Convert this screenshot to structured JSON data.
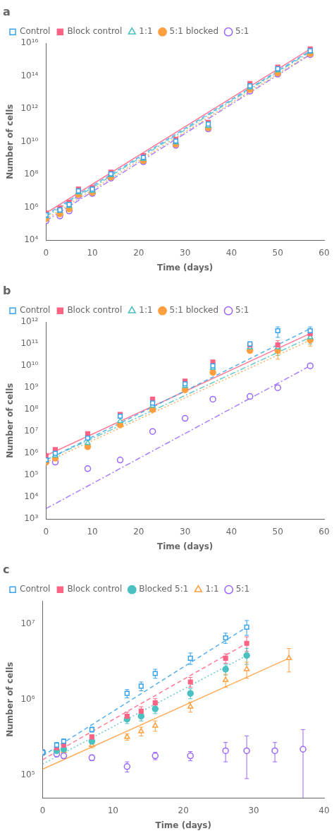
{
  "chart_data": [
    {
      "type": "scatter",
      "title": "a",
      "x_label": "Time (days)",
      "y_label": "Number of cells",
      "log": "y",
      "grid": false,
      "legend": "upper left",
      "xlim": [
        0,
        60
      ],
      "xticks": [
        0,
        10,
        20,
        30,
        40,
        50,
        60
      ],
      "ylim": [
        10000.0,
        1e+16
      ],
      "yticks": [
        {
          "value": 10000.0,
          "label": "10⁴"
        },
        {
          "value": 1000000.0,
          "label": "10⁶"
        },
        {
          "value": 100000000.0,
          "label": "10⁸"
        },
        {
          "value": 10000000000.0,
          "label": "10¹⁰"
        },
        {
          "value": 1000000000000.0,
          "label": "10¹²"
        },
        {
          "value": 100000000000000.0,
          "label": "10¹⁴"
        },
        {
          "value": 1e+16,
          "label": "10¹⁶"
        }
      ],
      "series": [
        {
          "name": "Control",
          "marker": "square-open",
          "line_style": "dashed",
          "x": [
            0,
            3,
            5,
            7,
            10,
            14,
            21,
            28,
            35,
            44,
            50,
            57
          ],
          "y": [
            350000.0,
            700000.0,
            1500000.0,
            10000000.0,
            13000000.0,
            110000000.0,
            1100000000.0,
            11000000000.0,
            120000000000.0,
            25000000000000.0,
            280000000000000.0,
            3500000000000000.0
          ],
          "fit_x": [
            0,
            57
          ],
          "fit_y": [
            350000.0,
            3500000000000000.0
          ]
        },
        {
          "name": "Block control",
          "marker": "square",
          "line_style": "solid",
          "x": [
            0,
            3,
            5,
            7,
            10,
            14,
            21,
            28,
            35,
            44,
            50,
            57
          ],
          "y": [
            450000.0,
            900000.0,
            2000000.0,
            13000000.0,
            16000000.0,
            140000000.0,
            1400000000.0,
            14000000000.0,
            150000000000.0,
            35000000000000.0,
            350000000000000.0,
            4500000000000000.0
          ],
          "fit_x": [
            0,
            57
          ],
          "fit_y": [
            450000.0,
            4500000000000000.0
          ]
        },
        {
          "name": "1:1",
          "marker": "triangle-open",
          "line_style": "dashdot",
          "x": [
            0,
            3,
            5,
            7,
            10,
            14,
            21,
            28,
            35,
            44,
            50,
            57
          ],
          "y": [
            280000.0,
            600000.0,
            1200000.0,
            8000000.0,
            10000000.0,
            90000000.0,
            900000000.0,
            9000000000.0,
            90000000000.0,
            20000000000000.0,
            220000000000000.0,
            3000000000000000.0
          ],
          "fit_x": [
            0,
            57
          ],
          "fit_y": [
            280000.0,
            3000000000000000.0
          ]
        },
        {
          "name": "5:1 blocked",
          "marker": "circle",
          "line_style": "dotted",
          "x": [
            0,
            3,
            5,
            7,
            10,
            14,
            21,
            28,
            35,
            44,
            50,
            57
          ],
          "y": [
            200000.0,
            400000.0,
            800000.0,
            6000000.0,
            8000000.0,
            70000000.0,
            700000000.0,
            7000000000.0,
            70000000000.0,
            15000000000000.0,
            150000000000000.0,
            2300000000000000.0
          ],
          "fit_x": [
            0,
            57
          ],
          "fit_y": [
            200000.0,
            2300000000000000.0
          ]
        },
        {
          "name": "5:1",
          "marker": "circle-open",
          "line_style": "dashdot",
          "x": [
            0,
            3,
            5,
            7,
            10,
            14,
            21,
            28,
            35,
            44,
            50,
            57
          ],
          "y": [
            150000.0,
            300000.0,
            600000.0,
            5000000.0,
            7000000.0,
            60000000.0,
            600000000.0,
            6000000000.0,
            60000000000.0,
            12000000000000.0,
            130000000000000.0,
            2000000000000000.0
          ],
          "fit_x": [
            0,
            57
          ],
          "fit_y": [
            150000.0,
            2000000000000000.0
          ]
        }
      ]
    },
    {
      "type": "scatter",
      "title": "b",
      "x_label": "Time (days)",
      "y_label": "Number of cells",
      "log": "y",
      "grid": false,
      "legend": "upper left",
      "xlim": [
        0,
        60
      ],
      "xticks": [
        0,
        10,
        20,
        30,
        40,
        50,
        60
      ],
      "ylim": [
        1000.0,
        1000000000000.0
      ],
      "yticks": [
        {
          "value": 1000.0,
          "label": "10³"
        },
        {
          "value": 10000.0,
          "label": "10⁴"
        },
        {
          "value": 100000.0,
          "label": "10⁵"
        },
        {
          "value": 1000000.0,
          "label": "10⁶"
        },
        {
          "value": 10000000.0,
          "label": "10⁷"
        },
        {
          "value": 100000000.0,
          "label": "10⁸"
        },
        {
          "value": 1000000000.0,
          "label": "10⁹"
        },
        {
          "value": 10000000000.0,
          "label": "10¹⁰"
        },
        {
          "value": 100000000000.0,
          "label": "10¹¹"
        },
        {
          "value": 1000000000000.0,
          "label": "10¹²"
        }
      ],
      "series": [
        {
          "name": "Control",
          "marker": "square-open",
          "line_style": "dashed",
          "x": [
            0,
            2,
            9,
            16,
            23,
            30,
            36,
            44,
            50,
            57
          ],
          "y": [
            500000.0,
            1000000.0,
            5000000.0,
            50000000.0,
            200000000.0,
            1500000000.0,
            10000000000.0,
            100000000000.0,
            400000000000.0,
            400000000000.0
          ],
          "yerr": [
            null,
            null,
            null,
            null,
            null,
            null,
            null,
            null,
            200000000000.0,
            200000000000.0
          ],
          "fit_x": [
            0,
            57
          ],
          "fit_y": [
            500000.0,
            500000000000.0
          ]
        },
        {
          "name": "Block control",
          "marker": "square",
          "line_style": "solid",
          "x": [
            0,
            2,
            9,
            16,
            23,
            30,
            36,
            44,
            50,
            57
          ],
          "y": [
            800000.0,
            1500000.0,
            8000000.0,
            60000000.0,
            300000000.0,
            2000000000.0,
            15000000000.0,
            90000000000.0,
            90000000000.0,
            300000000000.0
          ],
          "yerr": [
            null,
            null,
            null,
            null,
            null,
            null,
            null,
            null,
            50000000000.0,
            100000000000.0
          ],
          "fit_x": [
            0,
            57
          ],
          "fit_y": [
            800000.0,
            300000000000.0
          ]
        },
        {
          "name": "1:1",
          "marker": "triangle-open",
          "line_style": "dashdot",
          "x": [
            0,
            2,
            9,
            16,
            23,
            30,
            36,
            44,
            50,
            57
          ],
          "y": [
            500000.0,
            800000.0,
            3000000.0,
            30000000.0,
            150000000.0,
            1200000000.0,
            8000000000.0,
            70000000000.0,
            70000000000.0,
            200000000000.0
          ],
          "yerr": [
            null,
            null,
            null,
            null,
            null,
            null,
            null,
            null,
            40000000000.0,
            100000000000.0
          ],
          "fit_x": [
            0,
            57
          ],
          "fit_y": [
            500000.0,
            200000000000.0
          ]
        },
        {
          "name": "5:1 blocked",
          "marker": "circle",
          "line_style": "dotted",
          "x": [
            0,
            2,
            9,
            16,
            23,
            30,
            36,
            44,
            50,
            57
          ],
          "y": [
            400000.0,
            600000.0,
            2000000.0,
            20000000.0,
            100000000.0,
            800000000.0,
            5000000000.0,
            50000000000.0,
            50000000000.0,
            150000000000.0
          ],
          "yerr": [
            null,
            null,
            null,
            null,
            null,
            null,
            null,
            null,
            30000000000.0,
            70000000000.0
          ],
          "fit_x": [
            0,
            57
          ],
          "fit_y": [
            400000.0,
            150000000000.0
          ]
        },
        {
          "name": "5:1",
          "marker": "circle-open",
          "line_style": "dashdot",
          "x": [
            0,
            2,
            9,
            16,
            23,
            30,
            36,
            44,
            50,
            57
          ],
          "y": [
            400000.0,
            400000.0,
            200000.0,
            500000.0,
            10000000.0,
            40000000.0,
            300000000.0,
            400000000.0,
            1000000000.0,
            10000000000.0
          ],
          "fit_x": [
            0,
            57
          ],
          "fit_y": [
            3000.0,
            10000000000.0
          ]
        }
      ]
    },
    {
      "type": "scatter",
      "title": "c",
      "x_label": "Time (days)",
      "y_label": "Number of cells",
      "log": "y",
      "grid": false,
      "legend": "upper left",
      "xlim": [
        0,
        40
      ],
      "xticks": [
        0,
        10,
        20,
        30,
        40
      ],
      "ylim": [
        50118.72336272725,
        19952623.149688788
      ],
      "yticks": [
        {
          "value": 100000.0,
          "label": "10⁵"
        },
        {
          "value": 1000000.0,
          "label": "10⁶"
        },
        {
          "value": 10000000.0,
          "label": "10⁷"
        }
      ],
      "series": [
        {
          "name": "Control",
          "marker": "square-open",
          "line_style": "dashed",
          "x": [
            0,
            2,
            3,
            7,
            12,
            14,
            16,
            21,
            26,
            29
          ],
          "y": [
            200000.0,
            250000.0,
            280000.0,
            400000.0,
            1200000.0,
            1500000.0,
            2200000.0,
            3500000.0,
            6500000.0,
            9000000.0
          ],
          "yerr": [
            15000.0,
            20000.0,
            20000.0,
            30000.0,
            150000.0,
            200000.0,
            300000.0,
            600000.0,
            1000000.0,
            2000000.0
          ],
          "fit_x": [
            0,
            29
          ],
          "fit_y": [
            180000.0,
            9000000.0
          ]
        },
        {
          "name": "Block control",
          "marker": "square",
          "line_style": "dashed",
          "x": [
            0,
            2,
            3,
            7,
            12,
            14,
            16,
            21,
            26,
            29
          ],
          "y": [
            200000.0,
            230000.0,
            250000.0,
            320000.0,
            600000.0,
            700000.0,
            900000.0,
            1700000.0,
            3500000.0,
            5500000.0
          ],
          "yerr": [
            15000.0,
            20000.0,
            20000.0,
            20000.0,
            80000.0,
            100000.0,
            120000.0,
            250000.0,
            500000.0,
            1200000.0
          ],
          "fit_x": [
            0,
            29
          ],
          "fit_y": [
            160000.0,
            5500000.0
          ]
        },
        {
          "name": "Blocked 5:1",
          "marker": "circle",
          "line_style": "dotted",
          "x": [
            0,
            2,
            3,
            7,
            12,
            14,
            16,
            21,
            26,
            29
          ],
          "y": [
            200000.0,
            210000.0,
            220000.0,
            280000.0,
            550000.0,
            600000.0,
            750000.0,
            1200000.0,
            2500000.0,
            3800000.0
          ],
          "yerr": [
            15000.0,
            15000.0,
            15000.0,
            20000.0,
            70000.0,
            80000.0,
            100000.0,
            180000.0,
            400000.0,
            900000.0
          ],
          "fit_x": [
            0,
            29
          ],
          "fit_y": [
            140000.0,
            3800000.0
          ]
        },
        {
          "name": "1:1",
          "marker": "triangle-open",
          "line_style": "solid",
          "x": [
            0,
            2,
            3,
            7,
            12,
            14,
            16,
            21,
            26,
            29,
            35
          ],
          "y": [
            200000.0,
            210000.0,
            210000.0,
            250000.0,
            320000.0,
            380000.0,
            450000.0,
            800000.0,
            1800000.0,
            2500000.0,
            3500000.0
          ],
          "yerr": [
            15000.0,
            15000.0,
            15000.0,
            20000.0,
            30000.0,
            50000.0,
            70000.0,
            120000.0,
            350000.0,
            600000.0,
            1200000.0
          ],
          "fit_x": [
            0,
            35
          ],
          "fit_y": [
            120000.0,
            3500000.0
          ]
        },
        {
          "name": "5:1",
          "marker": "circle-open",
          "x": [
            0,
            2,
            3,
            7,
            12,
            16,
            21,
            26,
            29,
            33,
            37
          ],
          "y": [
            200000.0,
            190000.0,
            180000.0,
            170000.0,
            130000.0,
            180000.0,
            180000.0,
            210000.0,
            210000.0,
            210000.0,
            220000.0
          ],
          "yerr": [
            15000.0,
            15000.0,
            15000.0,
            15000.0,
            20000.0,
            20000.0,
            25000.0,
            60000.0,
            120000.0,
            60000.0,
            180000.0
          ]
        }
      ]
    }
  ]
}
